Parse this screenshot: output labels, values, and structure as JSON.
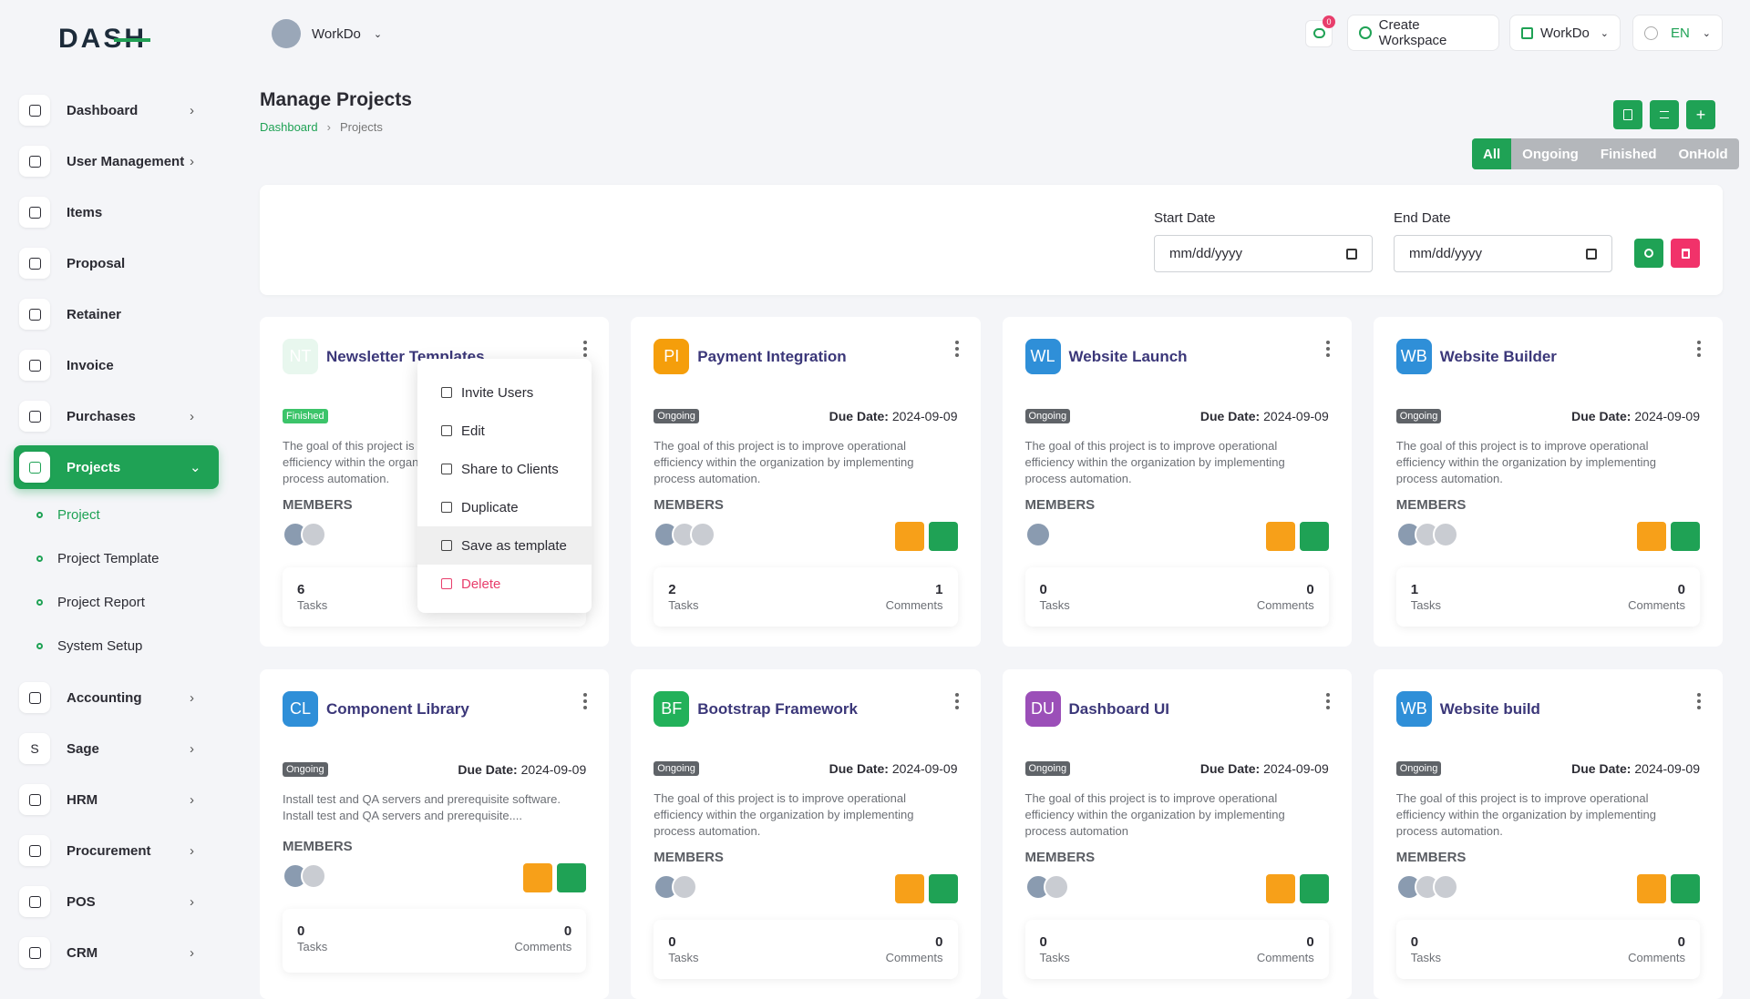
{
  "brand": "DASH",
  "header": {
    "workspace": "WorkDo",
    "notifications": "0",
    "create_workspace": "Create Workspace",
    "workspace_menu": "WorkDo",
    "language": "EN"
  },
  "sidebar": {
    "items": [
      {
        "label": "Dashboard",
        "expandable": true
      },
      {
        "label": "User Management",
        "expandable": true
      },
      {
        "label": "Items",
        "expandable": false
      },
      {
        "label": "Proposal",
        "expandable": false
      },
      {
        "label": "Retainer",
        "expandable": false
      },
      {
        "label": "Invoice",
        "expandable": false
      },
      {
        "label": "Purchases",
        "expandable": true
      },
      {
        "label": "Projects",
        "expandable": true,
        "active": true,
        "children": [
          {
            "label": "Project",
            "active": true
          },
          {
            "label": "Project Template",
            "active": false
          },
          {
            "label": "Project Report",
            "active": false
          },
          {
            "label": "System Setup",
            "active": false
          }
        ]
      },
      {
        "label": "Accounting",
        "expandable": true
      },
      {
        "label": "Sage",
        "expandable": true,
        "icon_text": "S"
      },
      {
        "label": "HRM",
        "expandable": true
      },
      {
        "label": "Procurement",
        "expandable": true
      },
      {
        "label": "POS",
        "expandable": true
      },
      {
        "label": "CRM",
        "expandable": true
      }
    ]
  },
  "page": {
    "title": "Manage Projects",
    "breadcrumb": [
      "Dashboard",
      "Projects"
    ],
    "filters": [
      {
        "label": "All",
        "active": true
      },
      {
        "label": "Ongoing",
        "active": false
      },
      {
        "label": "Finished",
        "active": false
      },
      {
        "label": "OnHold",
        "active": false
      }
    ],
    "start_date_label": "Start Date",
    "end_date_label": "End Date",
    "date_placeholder": "mm/dd/yyyy"
  },
  "labels": {
    "due": "Due Date:",
    "members": "MEMBERS",
    "tasks": "Tasks",
    "comments": "Comments"
  },
  "projects": [
    {
      "initials": "NT",
      "name": "Newsletter Templates",
      "color": "#e8f7ee",
      "status": "Finished",
      "status_color": "#3cc46a",
      "description": "The goal of this project is to improve operational efficiency within the organization by implementing process automation.",
      "avatars": 2,
      "tasks": "6"
    },
    {
      "initials": "PI",
      "name": "Payment Integration",
      "color": "#f59e0b",
      "status": "Ongoing",
      "status_color": "#5f6368",
      "due": "2024-09-09",
      "description": "The goal of this project is to improve operational efficiency within the organization by implementing process automation.",
      "avatars": 3,
      "tasks": "2",
      "comments": "1"
    },
    {
      "initials": "WL",
      "name": "Website Launch",
      "color": "#2f8fd8",
      "status": "Ongoing",
      "status_color": "#5f6368",
      "due": "2024-09-09",
      "description": "The goal of this project is to improve operational efficiency within the organization by implementing process automation.",
      "avatars": 1,
      "tasks": "0",
      "comments": "0"
    },
    {
      "initials": "WB",
      "name": "Website Builder",
      "color": "#2f8fd8",
      "status": "Ongoing",
      "status_color": "#5f6368",
      "due": "2024-09-09",
      "description": "The goal of this project is to improve operational efficiency within the organization by implementing process automation.",
      "avatars": 3,
      "tasks": "1",
      "comments": "0"
    },
    {
      "initials": "CL",
      "name": "Component Library",
      "color": "#2f8fd8",
      "status": "Ongoing",
      "status_color": "#5f6368",
      "due": "2024-09-09",
      "description": "Install test and QA servers and prerequisite software. Install test and QA servers and prerequisite....",
      "avatars": 2,
      "tasks": "0",
      "comments": "0"
    },
    {
      "initials": "BF",
      "name": "Bootstrap Framework",
      "color": "#22b15a",
      "status": "Ongoing",
      "status_color": "#5f6368",
      "due": "2024-09-09",
      "description": "The goal of this project is to improve operational efficiency within the organization by implementing process automation.",
      "avatars": 2,
      "tasks": "0",
      "comments": "0"
    },
    {
      "initials": "DU",
      "name": "Dashboard UI",
      "color": "#9b4fb8",
      "status": "Ongoing",
      "status_color": "#5f6368",
      "due": "2024-09-09",
      "description": "The goal of this project is to improve operational efficiency within the organization by implementing process automation",
      "avatars": 2,
      "tasks": "0",
      "comments": "0"
    },
    {
      "initials": "WB",
      "name": "Website build",
      "color": "#2f8fd8",
      "status": "Ongoing",
      "status_color": "#5f6368",
      "due": "2024-09-09",
      "description": "The goal of this project is to improve operational efficiency within the organization by implementing process automation.",
      "avatars": 3,
      "tasks": "0",
      "comments": "0"
    }
  ],
  "context_menu": {
    "project": 0,
    "items": [
      {
        "label": "Invite Users"
      },
      {
        "label": "Edit"
      },
      {
        "label": "Share to Clients"
      },
      {
        "label": "Duplicate"
      },
      {
        "label": "Save as template",
        "hover": true
      },
      {
        "label": "Delete",
        "danger": true
      }
    ]
  }
}
